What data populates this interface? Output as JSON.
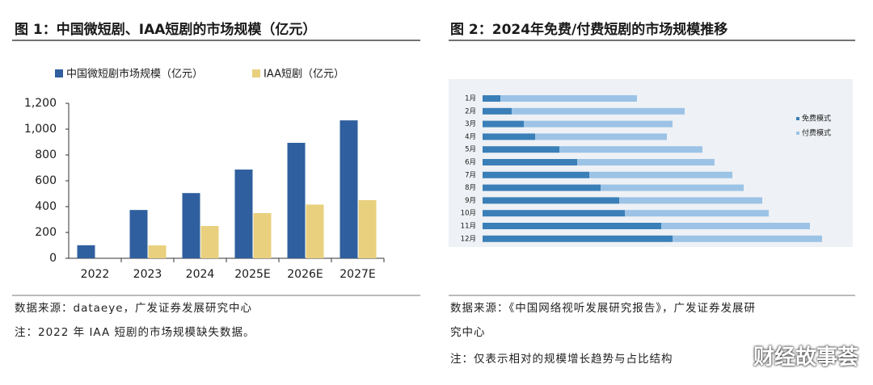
{
  "chart_data": [
    {
      "type": "bar",
      "title": "图 1：中国微短剧、IAA短剧的市场规模（亿元）",
      "categories": [
        "2022",
        "2023",
        "2024",
        "2025E",
        "2026E",
        "2027E"
      ],
      "series": [
        {
          "name": "中国微短剧市场规模（亿元）",
          "color": "#2f5f9e",
          "values": [
            101,
            374,
            505,
            687,
            894,
            1068
          ]
        },
        {
          "name": "IAA短剧（亿元）",
          "color": "#e9d07e",
          "values": [
            null,
            100,
            250,
            350,
            416,
            450
          ]
        }
      ],
      "ylim": [
        0,
        1200
      ],
      "yticks": [
        0,
        200,
        400,
        600,
        800,
        {
          "value": 1000,
          "label": "1,000"
        },
        {
          "value": 1200,
          "label": "1,200"
        }
      ]
    },
    {
      "type": "stacked_barh",
      "title": "图 2：2024年免费/付费短剧的市场规模推移",
      "categories": [
        "1月",
        "2月",
        "3月",
        "4月",
        "5月",
        "6月",
        "7月",
        "8月",
        "9月",
        "10月",
        "11月",
        "12月"
      ],
      "series": [
        {
          "name": "免费模式",
          "color": "#3a7fb8",
          "values": [
            22,
            36,
            51,
            65,
            95,
            117,
            132,
            146,
            169,
            176,
            221,
            235
          ]
        },
        {
          "name": "付费模式",
          "color": "#9cc3e6",
          "values": [
            169,
            214,
            184,
            163,
            177,
            170,
            177,
            177,
            177,
            178,
            184,
            185
          ]
        }
      ]
    }
  ],
  "notes": [
    {
      "source": "数据来源：dataeye，广发证券发展研究中心",
      "note": "注：2022 年 IAA 短剧的市场规模缺失数据。"
    },
    {
      "source": "数据来源：《中国网络视听发展研究报告》，广发证券发展研究中心",
      "note": "注：仅表示相对的规模增长趋势与占比结构"
    }
  ],
  "watermark": "财经故事荟"
}
